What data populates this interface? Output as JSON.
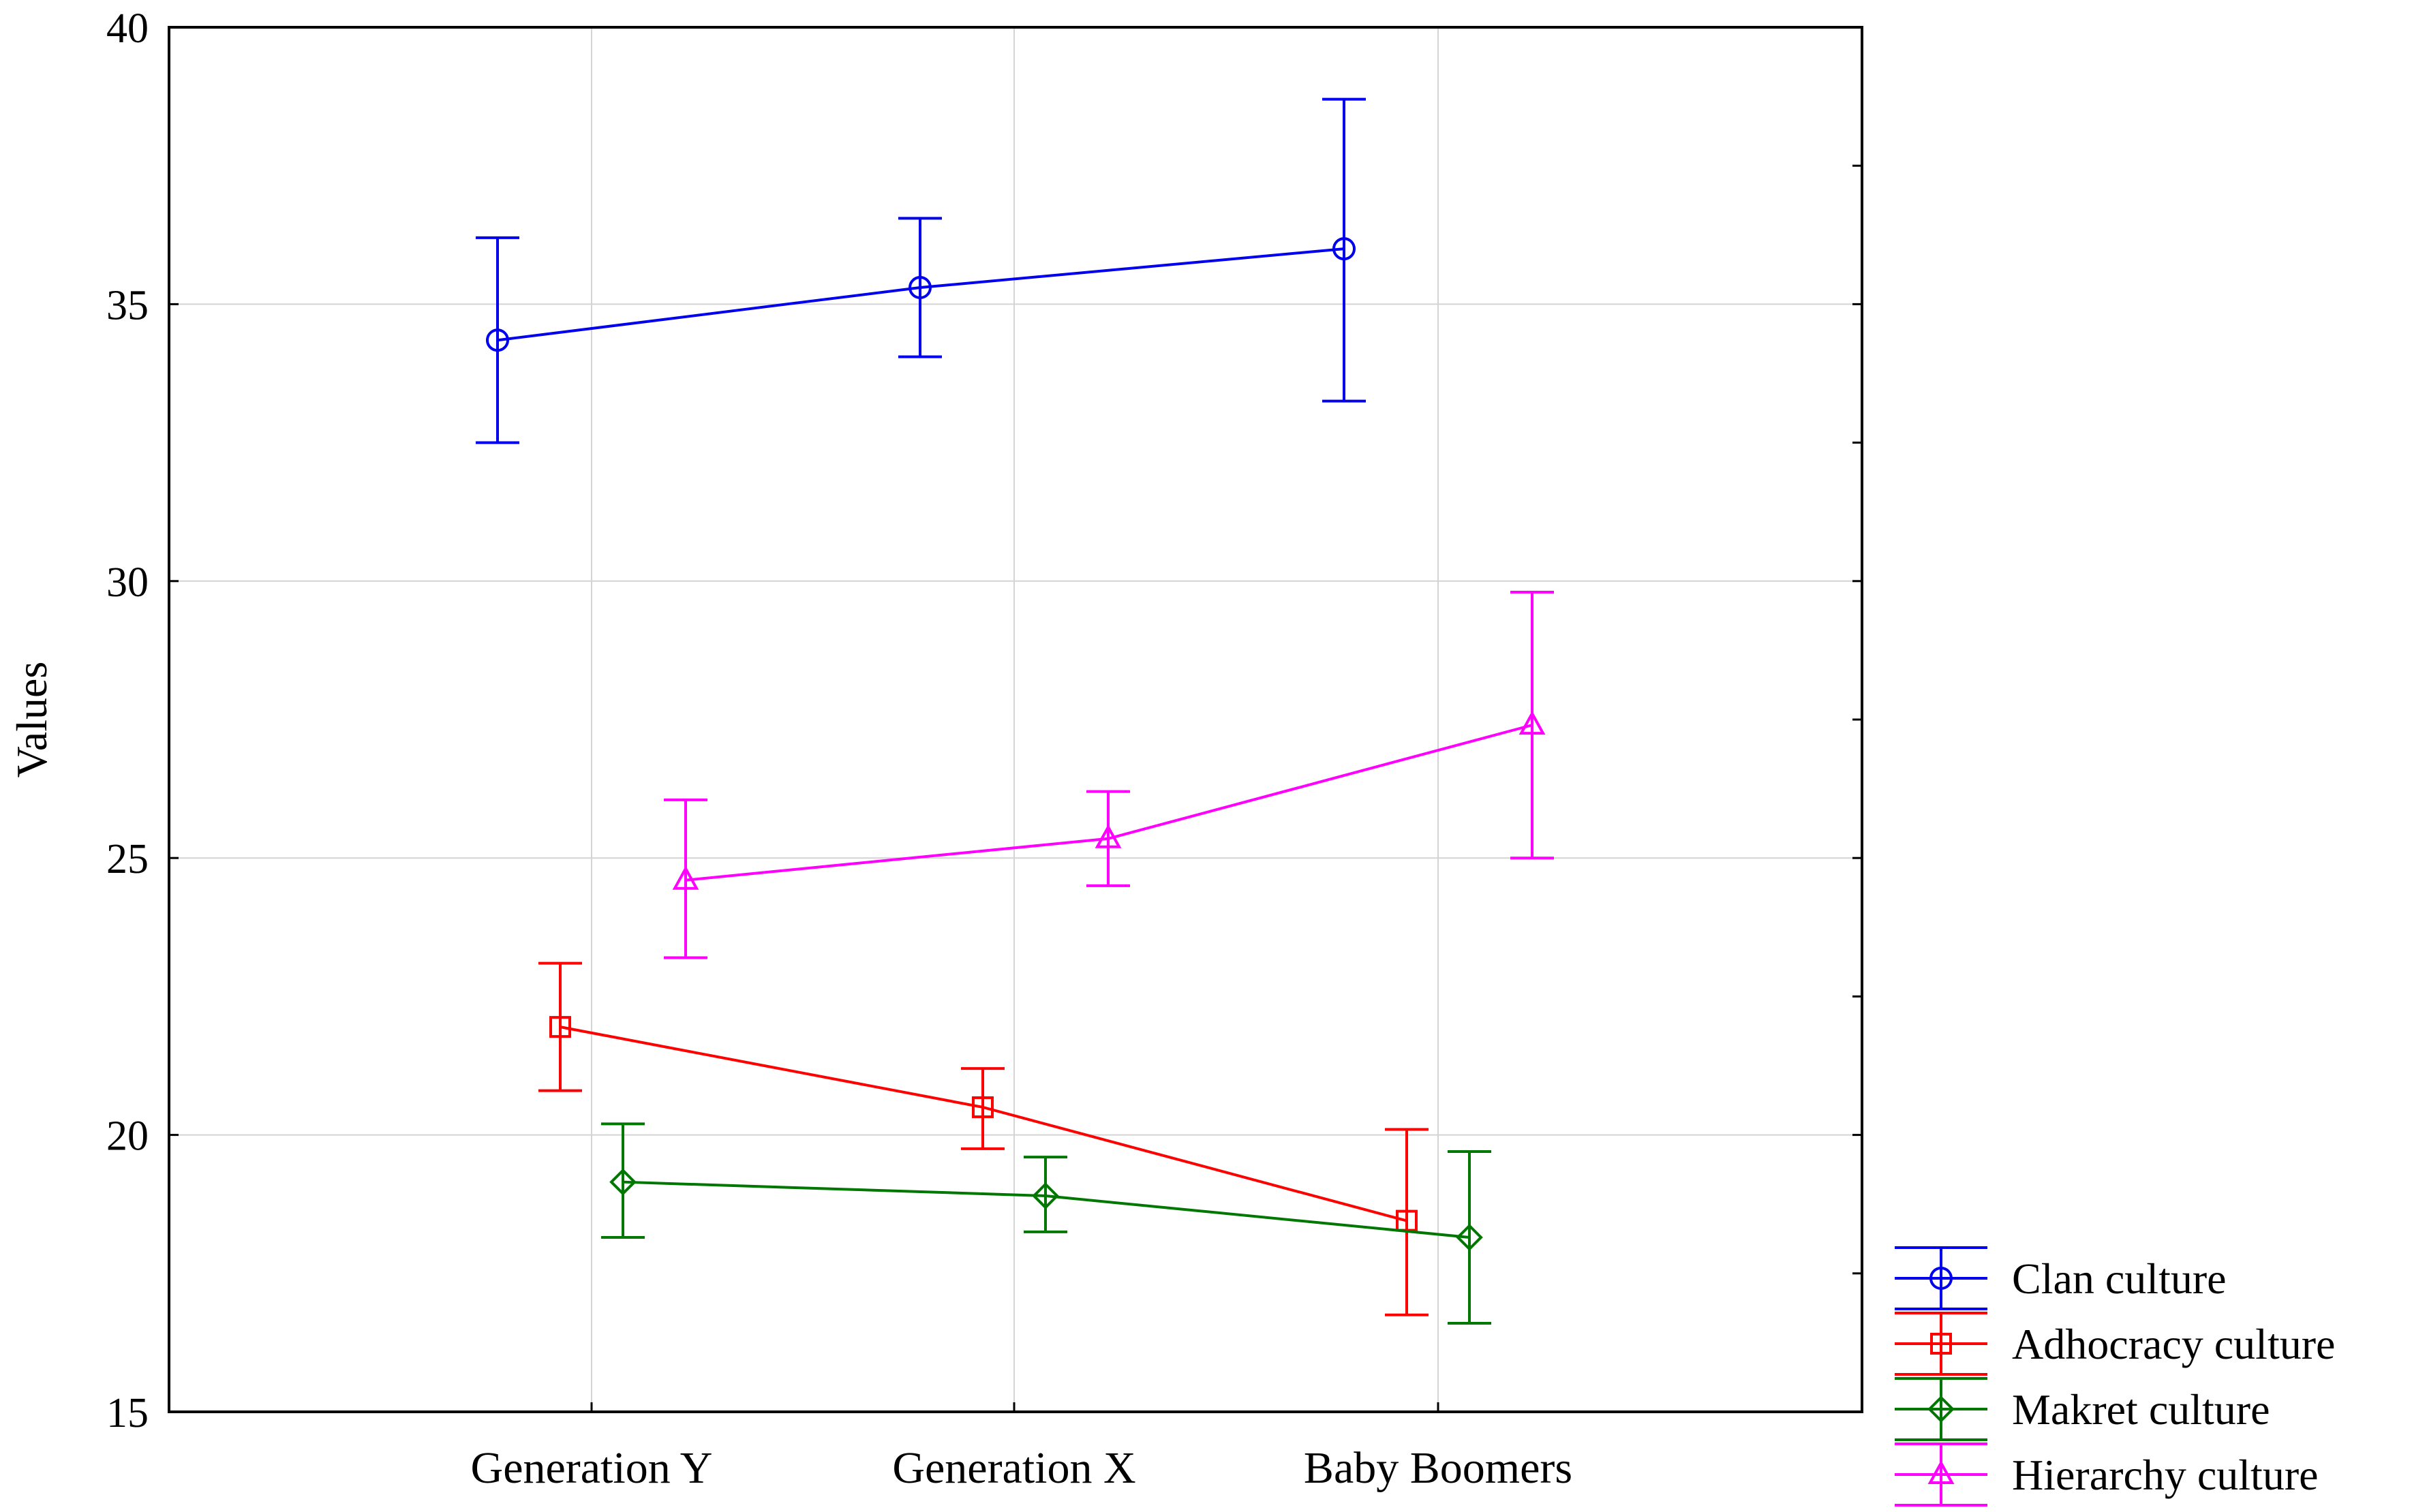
{
  "chart_data": {
    "type": "line",
    "title": "",
    "xlabel": "",
    "ylabel": "Values",
    "categories": [
      "Generation Y",
      "Generation X",
      "Baby Boomers"
    ],
    "ylim": [
      15,
      40
    ],
    "yticks": [
      15,
      20,
      25,
      30,
      35,
      40
    ],
    "grid": true,
    "error_bars": true,
    "legend_position": "bottom-right, outside plot",
    "series": [
      {
        "name": "Clan culture",
        "color": "#0000ee",
        "marker": "circle",
        "values": [
          34.35,
          35.3,
          36.0
        ],
        "lower": [
          32.5,
          34.05,
          33.25
        ],
        "upper": [
          36.2,
          36.55,
          38.7
        ]
      },
      {
        "name": "Adhocracy culture",
        "color": "#ff0000",
        "marker": "square",
        "values": [
          21.95,
          20.5,
          18.45
        ],
        "lower": [
          20.8,
          19.75,
          16.75
        ],
        "upper": [
          23.1,
          21.2,
          20.1
        ]
      },
      {
        "name": "Makret culture",
        "color": "#007700",
        "marker": "diamond",
        "values": [
          19.15,
          18.9,
          18.15
        ],
        "lower": [
          18.15,
          18.25,
          16.6
        ],
        "upper": [
          20.2,
          19.6,
          19.7
        ]
      },
      {
        "name": "Hierarchy culture",
        "color": "#ff00ff",
        "marker": "triangle",
        "values": [
          24.6,
          25.35,
          27.4
        ],
        "lower": [
          23.2,
          24.5,
          25.0
        ],
        "upper": [
          26.05,
          26.2,
          29.8
        ]
      }
    ]
  }
}
